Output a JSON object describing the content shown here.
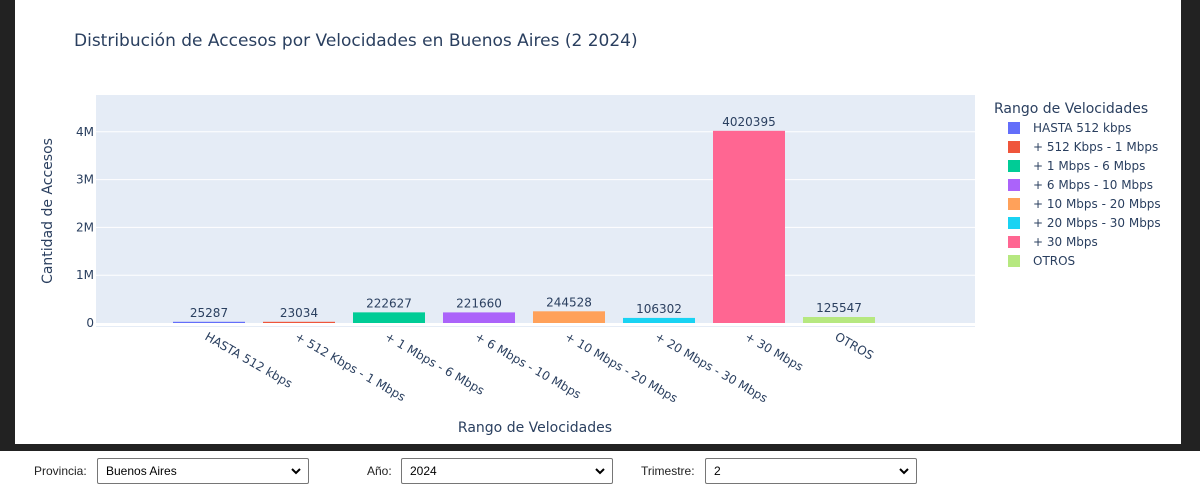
{
  "chart_data": {
    "type": "bar",
    "title": "Distribución de Accesos por Velocidades en Buenos Aires (2 2024)",
    "xlabel": "Rango de Velocidades",
    "ylabel": "Cantidad de Accesos",
    "categories": [
      "HASTA 512 kbps",
      "+ 512 Kbps - 1 Mbps",
      "+ 1 Mbps - 6 Mbps",
      "+ 6 Mbps - 10 Mbps",
      "+ 10 Mbps - 20 Mbps",
      "+ 20 Mbps - 30 Mbps",
      "+ 30 Mbps",
      "OTROS"
    ],
    "values": [
      25287,
      23034,
      222627,
      221660,
      244528,
      106302,
      4020395,
      125547
    ],
    "colors": [
      "#636efa",
      "#ef553b",
      "#00cc96",
      "#ab63fa",
      "#ffa15a",
      "#19d3f3",
      "#ff6692",
      "#b6e880"
    ],
    "yticks": [
      0,
      1000000,
      2000000,
      3000000,
      4000000
    ],
    "ytick_labels": [
      "0",
      "1M",
      "2M",
      "3M",
      "4M"
    ],
    "ylim": [
      0,
      4800000
    ],
    "grid": true,
    "legend": {
      "title": "Rango de Velocidades",
      "placement": "right",
      "entries": [
        "HASTA 512 kbps",
        "+ 512 Kbps - 1 Mbps",
        "+ 1 Mbps - 6 Mbps",
        "+ 6 Mbps - 10 Mbps",
        "+ 10 Mbps - 20 Mbps",
        "+ 20 Mbps - 30 Mbps",
        "+ 30 Mbps",
        "OTROS"
      ]
    }
  },
  "controls": {
    "provincia_label": "Provincia:",
    "provincia_value": "Buenos Aires",
    "anio_label": "Año:",
    "anio_value": "2024",
    "trimestre_label": "Trimestre:",
    "trimestre_value": "2"
  },
  "colors": {
    "plot_bg": "#e5ecf6",
    "text": "#2a3f5f",
    "grid": "#ffffff",
    "outer_bg": "#222222"
  }
}
